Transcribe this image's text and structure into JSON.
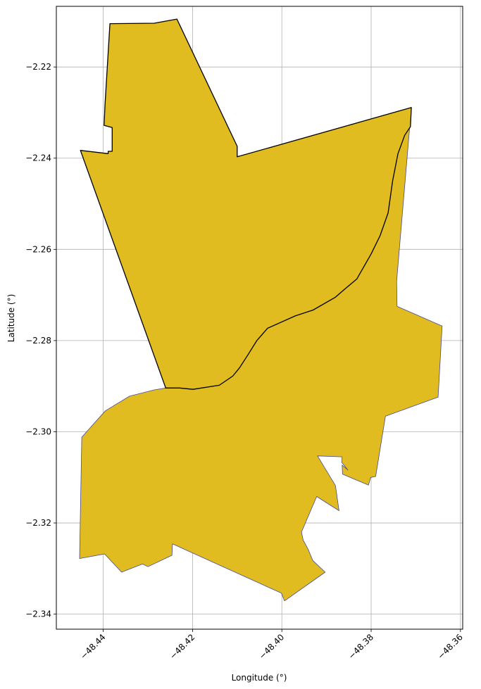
{
  "map": {
    "xlabel": "Longitude (°)",
    "ylabel": "Latitude (°)",
    "xlim": [
      -48.4505,
      -48.3595
    ],
    "ylim": [
      -2.3433,
      -2.2067
    ],
    "x_ticks": [
      {
        "value": -48.44,
        "label": "−48.44"
      },
      {
        "value": -48.42,
        "label": "−48.42"
      },
      {
        "value": -48.4,
        "label": "−48.40"
      },
      {
        "value": -48.38,
        "label": "−48.38"
      },
      {
        "value": -48.36,
        "label": "−48.36"
      }
    ],
    "y_ticks": [
      {
        "value": -2.22,
        "label": "−2.22"
      },
      {
        "value": -2.24,
        "label": "−2.24"
      },
      {
        "value": -2.26,
        "label": "−2.26"
      },
      {
        "value": -2.28,
        "label": "−2.28"
      },
      {
        "value": -2.3,
        "label": "−2.30"
      },
      {
        "value": -2.32,
        "label": "−2.32"
      },
      {
        "value": -2.34,
        "label": "−2.34"
      }
    ],
    "grid": true,
    "fill_color": "#e0bc20",
    "north_edge_color": "#000000",
    "south_edge_color": "#4a4a9a",
    "north_region": [
      [
        -48.4451,
        -2.2383
      ],
      [
        -48.4389,
        -2.239
      ],
      [
        -48.4389,
        -2.2385
      ],
      [
        -48.438,
        -2.2385
      ],
      [
        -48.438,
        -2.2333
      ],
      [
        -48.4398,
        -2.2328
      ],
      [
        -48.4396,
        -2.2283
      ],
      [
        -48.4385,
        -2.2105
      ],
      [
        -48.4286,
        -2.2104
      ],
      [
        -48.4235,
        -2.2095
      ],
      [
        -48.41,
        -2.2374
      ],
      [
        -48.41,
        -2.2397
      ],
      [
        -48.371,
        -2.2289
      ],
      [
        -48.3712,
        -2.2331
      ],
      [
        -48.3725,
        -2.235
      ],
      [
        -48.374,
        -2.239
      ],
      [
        -48.3752,
        -2.245
      ],
      [
        -48.3762,
        -2.252
      ],
      [
        -48.378,
        -2.257
      ],
      [
        -48.38,
        -2.261
      ],
      [
        -48.3832,
        -2.2665
      ],
      [
        -48.386,
        -2.2688
      ],
      [
        -48.388,
        -2.2705
      ],
      [
        -48.393,
        -2.2733
      ],
      [
        -48.397,
        -2.2746
      ],
      [
        -48.4032,
        -2.2773
      ],
      [
        -48.4056,
        -2.28
      ],
      [
        -48.4075,
        -2.283
      ],
      [
        -48.4095,
        -2.286
      ],
      [
        -48.411,
        -2.2878
      ],
      [
        -48.414,
        -2.2898
      ],
      [
        -48.4199,
        -2.2907
      ],
      [
        -48.4229,
        -2.2904
      ],
      [
        -48.426,
        -2.2904
      ]
    ],
    "south_region": [
      [
        -48.426,
        -2.2904
      ],
      [
        -48.4229,
        -2.2904
      ],
      [
        -48.4199,
        -2.2907
      ],
      [
        -48.414,
        -2.2898
      ],
      [
        -48.411,
        -2.2878
      ],
      [
        -48.4095,
        -2.286
      ],
      [
        -48.4075,
        -2.283
      ],
      [
        -48.4056,
        -2.28
      ],
      [
        -48.4032,
        -2.2773
      ],
      [
        -48.397,
        -2.2746
      ],
      [
        -48.393,
        -2.2733
      ],
      [
        -48.388,
        -2.2705
      ],
      [
        -48.386,
        -2.2688
      ],
      [
        -48.3832,
        -2.2665
      ],
      [
        -48.38,
        -2.261
      ],
      [
        -48.378,
        -2.257
      ],
      [
        -48.3762,
        -2.252
      ],
      [
        -48.3752,
        -2.245
      ],
      [
        -48.374,
        -2.239
      ],
      [
        -48.3725,
        -2.235
      ],
      [
        -48.3712,
        -2.2331
      ],
      [
        -48.371,
        -2.2289
      ],
      [
        -48.3743,
        -2.267
      ],
      [
        -48.3742,
        -2.2725
      ],
      [
        -48.3641,
        -2.2768
      ],
      [
        -48.365,
        -2.2924
      ],
      [
        -48.3768,
        -2.2966
      ],
      [
        -48.379,
        -2.3098
      ],
      [
        -48.3801,
        -2.31
      ],
      [
        -48.3806,
        -2.3117
      ],
      [
        -48.3864,
        -2.3093
      ],
      [
        -48.3865,
        -2.3073
      ],
      [
        -48.3852,
        -2.3084
      ],
      [
        -48.3866,
        -2.3067
      ],
      [
        -48.3865,
        -2.3055
      ],
      [
        -48.392,
        -2.3053
      ],
      [
        -48.388,
        -2.3118
      ],
      [
        -48.3872,
        -2.3173
      ],
      [
        -48.3922,
        -2.3142
      ],
      [
        -48.3956,
        -2.322
      ],
      [
        -48.3952,
        -2.3238
      ],
      [
        -48.3941,
        -2.3258
      ],
      [
        -48.3931,
        -2.3282
      ],
      [
        -48.3903,
        -2.3308
      ],
      [
        -48.3994,
        -2.3371
      ],
      [
        -48.4001,
        -2.3354
      ],
      [
        -48.4245,
        -2.3246
      ],
      [
        -48.4246,
        -2.3271
      ],
      [
        -48.43,
        -2.3296
      ],
      [
        -48.4312,
        -2.329
      ],
      [
        -48.4359,
        -2.3308
      ],
      [
        -48.4397,
        -2.3268
      ],
      [
        -48.4453,
        -2.3278
      ],
      [
        -48.4448,
        -2.3012
      ],
      [
        -48.4395,
        -2.2954
      ],
      [
        -48.4341,
        -2.2922
      ],
      [
        -48.4285,
        -2.2908
      ]
    ]
  }
}
